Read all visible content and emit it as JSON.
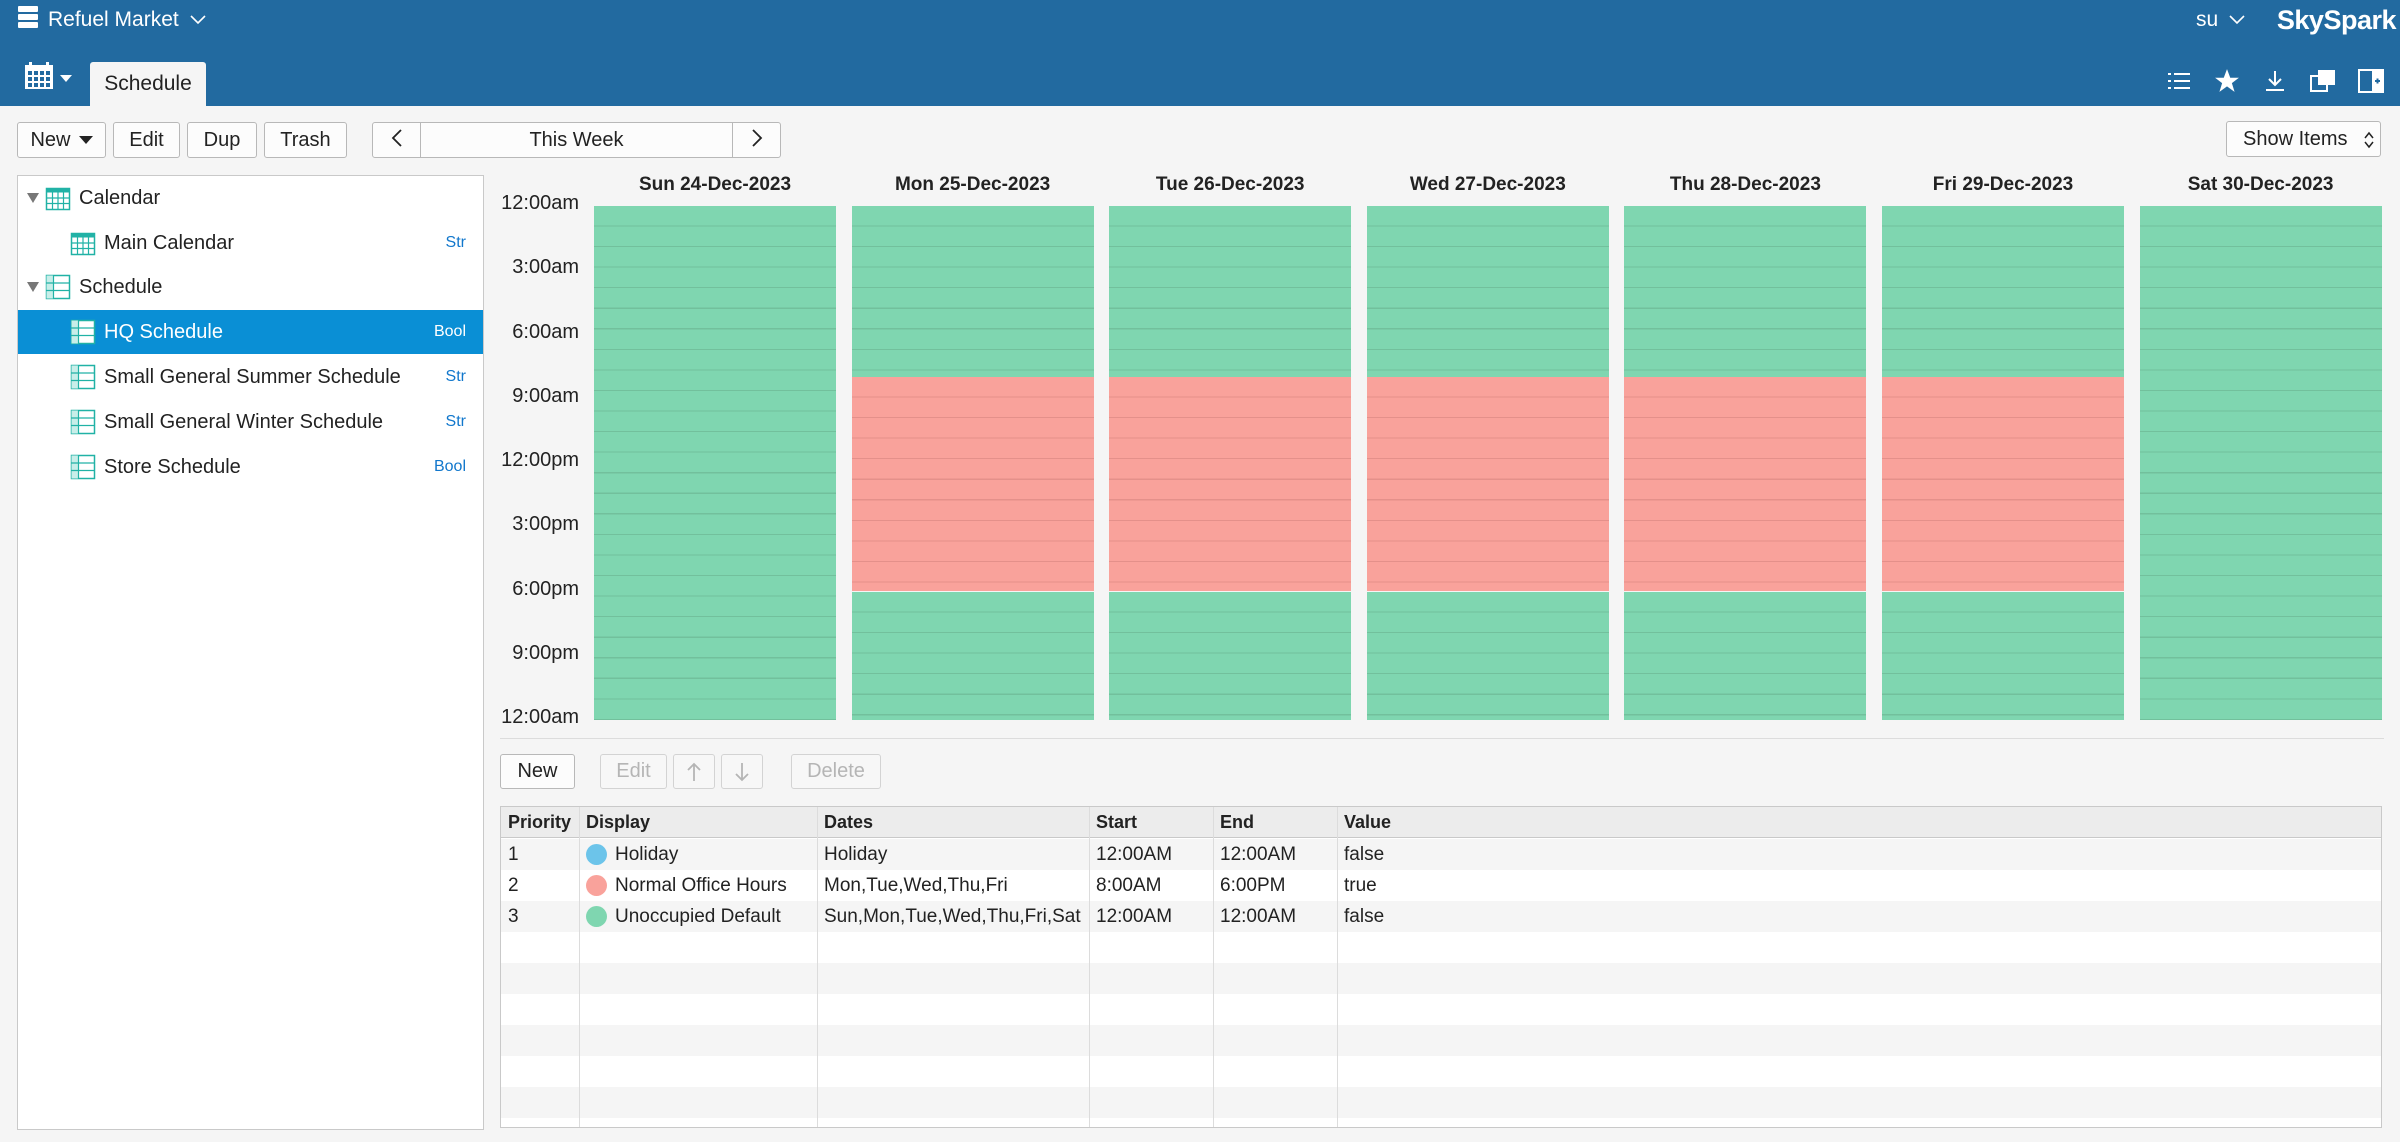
{
  "app": {
    "name": "Refuel Market",
    "user": "su",
    "brand": "SkySpark"
  },
  "tabs": {
    "active": "Schedule"
  },
  "toolbar": {
    "new_label": "New",
    "edit_label": "Edit",
    "dup_label": "Dup",
    "trash_label": "Trash",
    "week_label": "This Week",
    "show_items_label": "Show Items"
  },
  "tree": {
    "items": [
      {
        "label": "Calendar",
        "icon": "calendar-icon",
        "level": 0,
        "tag": "",
        "expanded": true
      },
      {
        "label": "Main Calendar",
        "icon": "calendar-icon",
        "level": 1,
        "tag": "Str"
      },
      {
        "label": "Schedule",
        "icon": "schedule-icon",
        "level": 0,
        "tag": "",
        "expanded": true
      },
      {
        "label": "HQ Schedule",
        "icon": "schedule-icon",
        "level": 1,
        "tag": "Bool",
        "selected": true
      },
      {
        "label": "Small General Summer Schedule",
        "icon": "schedule-icon",
        "level": 1,
        "tag": "Str"
      },
      {
        "label": "Small General Winter Schedule",
        "icon": "schedule-icon",
        "level": 1,
        "tag": "Str"
      },
      {
        "label": "Store Schedule",
        "icon": "schedule-icon",
        "level": 1,
        "tag": "Bool"
      }
    ]
  },
  "calendar": {
    "times": [
      "12:00am",
      "3:00am",
      "6:00am",
      "9:00am",
      "12:00pm",
      "3:00pm",
      "6:00pm",
      "9:00pm",
      "12:00am"
    ],
    "days": [
      {
        "label": "Sun 24-Dec-2023",
        "occupied_hours": null
      },
      {
        "label": "Mon 25-Dec-2023",
        "occupied_hours": [
          8,
          18
        ]
      },
      {
        "label": "Tue 26-Dec-2023",
        "occupied_hours": [
          8,
          18
        ]
      },
      {
        "label": "Wed 27-Dec-2023",
        "occupied_hours": [
          8,
          18
        ]
      },
      {
        "label": "Thu 28-Dec-2023",
        "occupied_hours": [
          8,
          18
        ]
      },
      {
        "label": "Fri 29-Dec-2023",
        "occupied_hours": [
          8,
          18
        ]
      },
      {
        "label": "Sat 30-Dec-2023",
        "occupied_hours": null
      }
    ],
    "colors": {
      "unoccupied": "#7fd6b0",
      "occupied": "#f9a29b",
      "holiday": "#6cc4ea"
    }
  },
  "items_toolbar": {
    "new_label": "New",
    "edit_label": "Edit",
    "up_icon": "arrow-up-icon",
    "down_icon": "arrow-down-icon",
    "delete_label": "Delete"
  },
  "grid": {
    "columns": [
      "Priority",
      "Display",
      "Dates",
      "Start",
      "End",
      "Value"
    ],
    "rows": [
      {
        "priority": "1",
        "display": "Holiday",
        "color": "#6cc4ea",
        "dates": "Holiday",
        "start": "12:00AM",
        "end": "12:00AM",
        "value": "false"
      },
      {
        "priority": "2",
        "display": "Normal Office Hours",
        "color": "#f9a29b",
        "dates": "Mon,Tue,Wed,Thu,Fri",
        "start": "8:00AM",
        "end": "6:00PM",
        "value": "true"
      },
      {
        "priority": "3",
        "display": "Unoccupied Default",
        "color": "#7fd6b0",
        "dates": "Sun,Mon,Tue,Wed,Thu,Fri,Sat",
        "start": "12:00AM",
        "end": "12:00AM",
        "value": "false"
      }
    ]
  }
}
